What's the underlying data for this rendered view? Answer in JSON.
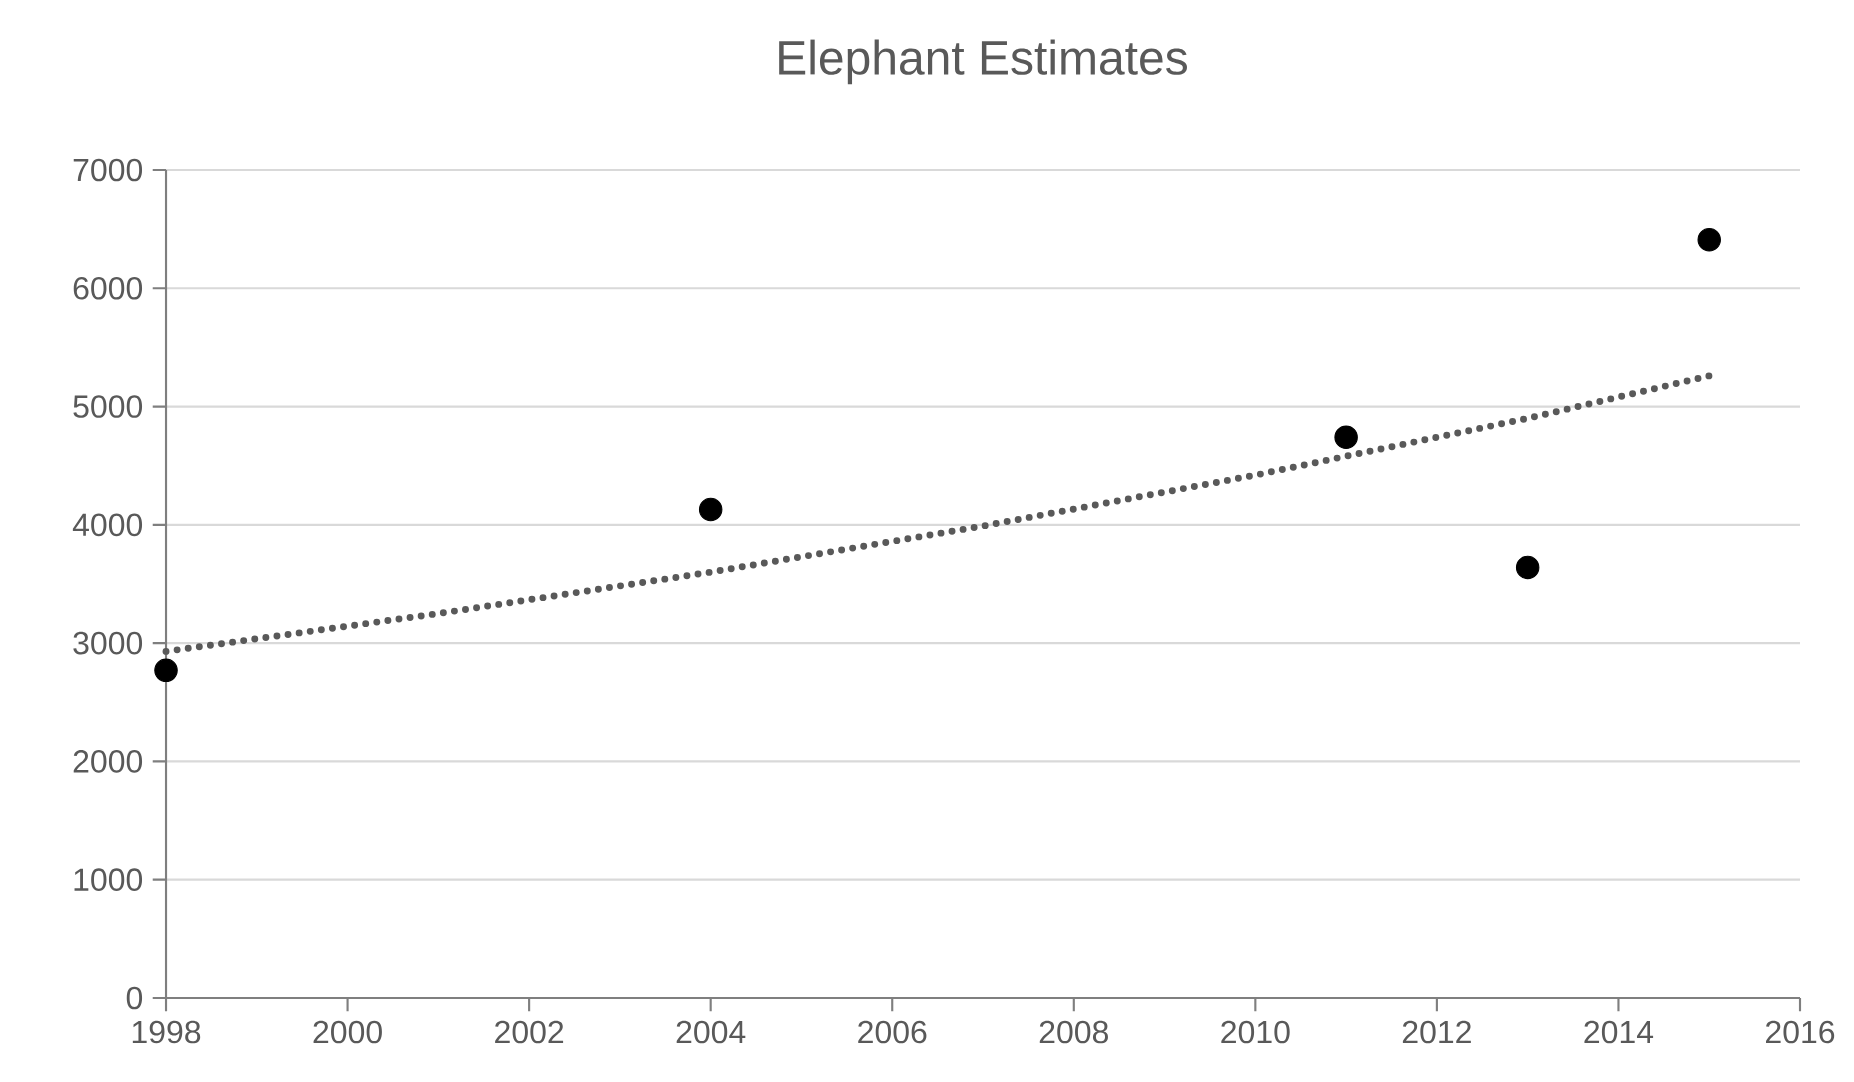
{
  "chart_data": {
    "type": "scatter",
    "title": "Elephant Estimates",
    "xlim": [
      1998,
      2016
    ],
    "xticks": [
      1998,
      2000,
      2002,
      2004,
      2006,
      2008,
      2010,
      2012,
      2014,
      2016
    ],
    "ylim": [
      0,
      7000
    ],
    "yticks": [
      0,
      1000,
      2000,
      3000,
      4000,
      5000,
      6000,
      7000
    ],
    "grid": "y",
    "series": [
      {
        "marker": "circle",
        "color": "#000000",
        "x": [
          1998,
          2004,
          2011,
          2013,
          2015
        ],
        "values": [
          2770,
          4130,
          4740,
          3640,
          6410
        ]
      },
      {
        "type": "line",
        "marker": "none",
        "line_style": "dotted",
        "color": "#595959",
        "x": [
          1998,
          2001,
          2004,
          2007,
          2010,
          2013,
          2015
        ],
        "values": [
          2930,
          3250,
          3600,
          3990,
          4420,
          4900,
          5260
        ]
      }
    ]
  }
}
